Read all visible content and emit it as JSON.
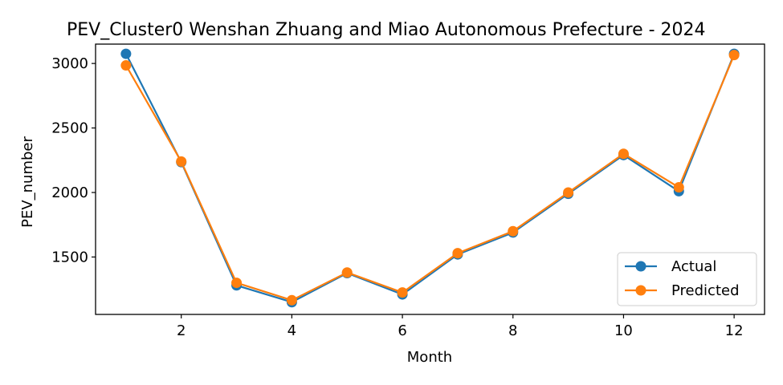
{
  "chart_data": {
    "type": "line",
    "title": "PEV_Cluster0 Wenshan Zhuang and Miao Autonomous Prefecture - 2024",
    "xlabel": "Month",
    "ylabel": "PEV_number",
    "x": [
      1,
      2,
      3,
      4,
      5,
      6,
      7,
      8,
      9,
      10,
      11,
      12
    ],
    "xlim": [
      0.45,
      12.55
    ],
    "ylim": [
      1055,
      3150
    ],
    "xticks": [
      2,
      4,
      6,
      8,
      10,
      12
    ],
    "yticks": [
      1500,
      2000,
      2500,
      3000
    ],
    "grid": false,
    "legend_position": "lower-right",
    "series": [
      {
        "name": "Actual",
        "color": "#1f77b4",
        "values": [
          3075,
          2235,
          1280,
          1150,
          1375,
          1210,
          1520,
          1690,
          1990,
          2290,
          2010,
          3075
        ]
      },
      {
        "name": "Predicted",
        "color": "#ff7f0e",
        "values": [
          2985,
          2240,
          1300,
          1165,
          1380,
          1225,
          1530,
          1700,
          2000,
          2300,
          2040,
          3065
        ]
      }
    ]
  }
}
